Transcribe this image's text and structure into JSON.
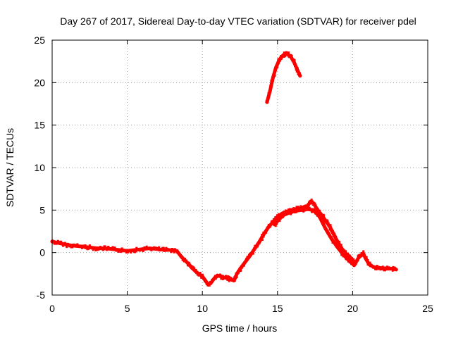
{
  "chart_data": {
    "type": "scatter",
    "title": "Day 267 of 2017, Sidereal Day-to-day VTEC variation (SDTVAR) for receiver pdel",
    "xlabel": "GPS time / hours",
    "ylabel": "SDTVAR / TECUs",
    "xlim": [
      0,
      25
    ],
    "ylim": [
      -5,
      25
    ],
    "xticks": [
      0,
      5,
      10,
      15,
      20,
      25
    ],
    "yticks": [
      -5,
      0,
      5,
      10,
      15,
      20,
      25
    ],
    "xtick_labels": [
      "0",
      "5",
      "10",
      "15",
      "20",
      "25"
    ],
    "ytick_labels": [
      "-5",
      "0",
      "5",
      "10",
      "15",
      "20",
      "25"
    ],
    "grid": true,
    "color": "#ff0000",
    "series": [
      {
        "name": "main trace",
        "points": [
          [
            0.0,
            1.3
          ],
          [
            0.5,
            1.1
          ],
          [
            1.0,
            0.9
          ],
          [
            1.5,
            0.8
          ],
          [
            2.0,
            0.7
          ],
          [
            2.5,
            0.6
          ],
          [
            3.0,
            0.5
          ],
          [
            3.5,
            0.5
          ],
          [
            4.0,
            0.4
          ],
          [
            4.5,
            0.3
          ],
          [
            5.0,
            0.2
          ],
          [
            5.5,
            0.3
          ],
          [
            6.0,
            0.4
          ],
          [
            6.5,
            0.5
          ],
          [
            7.0,
            0.4
          ],
          [
            7.5,
            0.3
          ],
          [
            8.0,
            0.3
          ],
          [
            8.3,
            0.2
          ],
          [
            8.6,
            -0.5
          ],
          [
            9.0,
            -1.2
          ],
          [
            9.3,
            -1.8
          ],
          [
            9.6,
            -2.3
          ],
          [
            10.0,
            -2.8
          ],
          [
            10.2,
            -3.3
          ],
          [
            10.4,
            -3.8
          ],
          [
            10.6,
            -3.5
          ],
          [
            10.8,
            -3.0
          ],
          [
            11.0,
            -2.7
          ],
          [
            11.4,
            -2.9
          ],
          [
            11.8,
            -3.1
          ],
          [
            12.1,
            -3.3
          ],
          [
            12.3,
            -2.5
          ],
          [
            12.6,
            -1.7
          ],
          [
            12.9,
            -1.0
          ],
          [
            13.2,
            -0.3
          ],
          [
            13.5,
            0.5
          ],
          [
            13.8,
            1.3
          ],
          [
            14.1,
            2.2
          ],
          [
            14.4,
            3.0
          ],
          [
            14.7,
            3.6
          ],
          [
            15.0,
            4.2
          ],
          [
            15.3,
            4.6
          ],
          [
            15.6,
            4.8
          ],
          [
            15.9,
            5.0
          ],
          [
            16.2,
            5.1
          ],
          [
            16.5,
            5.2
          ],
          [
            16.8,
            5.3
          ],
          [
            17.0,
            5.5
          ],
          [
            17.2,
            6.0
          ],
          [
            17.4,
            5.8
          ],
          [
            17.6,
            5.2
          ],
          [
            17.9,
            4.5
          ],
          [
            18.1,
            4.0
          ],
          [
            18.3,
            3.5
          ],
          [
            18.5,
            3.0
          ],
          [
            18.7,
            2.3
          ],
          [
            18.9,
            1.6
          ],
          [
            19.1,
            1.0
          ],
          [
            19.3,
            0.4
          ],
          [
            19.6,
            -0.2
          ],
          [
            19.8,
            -0.6
          ],
          [
            20.0,
            -0.9
          ],
          [
            20.2,
            -1.2
          ],
          [
            20.4,
            -0.6
          ],
          [
            20.7,
            -0.1
          ],
          [
            20.9,
            -0.8
          ],
          [
            21.1,
            -1.4
          ],
          [
            21.4,
            -1.7
          ],
          [
            21.8,
            -1.8
          ],
          [
            22.2,
            -1.9
          ],
          [
            22.6,
            -1.9
          ],
          [
            22.9,
            -2.0
          ]
        ]
      },
      {
        "name": "lower branch",
        "points": [
          [
            14.8,
            3.3
          ],
          [
            15.1,
            3.9
          ],
          [
            15.4,
            4.4
          ],
          [
            15.8,
            4.7
          ],
          [
            16.2,
            4.9
          ],
          [
            16.6,
            5.0
          ],
          [
            17.0,
            5.1
          ],
          [
            17.4,
            5.0
          ],
          [
            17.8,
            4.2
          ],
          [
            18.2,
            2.8
          ],
          [
            18.6,
            1.6
          ],
          [
            19.0,
            0.6
          ],
          [
            19.4,
            -0.3
          ],
          [
            19.8,
            -1.0
          ],
          [
            20.1,
            -1.5
          ]
        ]
      },
      {
        "name": "upper arc",
        "points": [
          [
            14.3,
            17.7
          ],
          [
            14.5,
            19.0
          ],
          [
            14.7,
            20.6
          ],
          [
            14.9,
            21.8
          ],
          [
            15.1,
            22.6
          ],
          [
            15.3,
            23.1
          ],
          [
            15.5,
            23.4
          ],
          [
            15.7,
            23.3
          ],
          [
            15.9,
            23.0
          ],
          [
            16.1,
            22.4
          ],
          [
            16.3,
            21.6
          ],
          [
            16.5,
            20.8
          ]
        ]
      }
    ]
  }
}
